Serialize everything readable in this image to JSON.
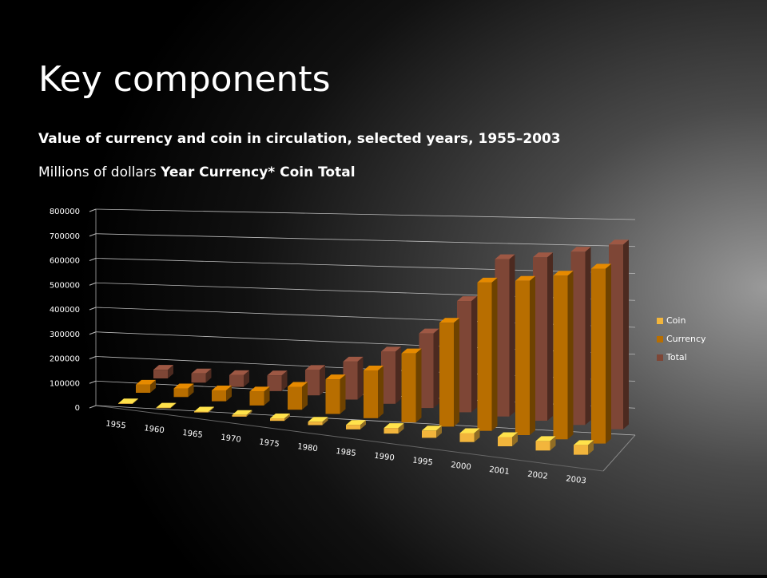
{
  "slide": {
    "title": "Key components",
    "subtitle": "Value of currency and coin in circulation,  selected years, 1955–2003",
    "note": "Millions of dollars",
    "header_row": "Year Currency*  Coin Total"
  },
  "chart_data": {
    "type": "bar3d",
    "categories": [
      "1955",
      "1960",
      "1965",
      "1970",
      "1975",
      "1980",
      "1985",
      "1990",
      "1995",
      "2000",
      "2001",
      "2002",
      "2003"
    ],
    "series": [
      {
        "name": "Coin",
        "color": "#f2b53c",
        "values": [
          2000,
          2000,
          3000,
          6000,
          9000,
          12000,
          16000,
          20000,
          26000,
          32000,
          33000,
          34000,
          35000
        ]
      },
      {
        "name": "Currency",
        "color": "#b86e00",
        "values": [
          29000,
          31000,
          39000,
          50000,
          82000,
          124000,
          171000,
          247000,
          372000,
          531000,
          552000,
          586000,
          626000
        ]
      },
      {
        "name": "Total",
        "color": "#7e4636",
        "values": [
          31000,
          33000,
          42000,
          56000,
          91000,
          136000,
          187000,
          267000,
          398000,
          563000,
          585000,
          620000,
          661000
        ]
      }
    ],
    "ylim": [
      0,
      800000
    ],
    "yticks": [
      0,
      100000,
      200000,
      300000,
      400000,
      500000,
      600000,
      700000,
      800000
    ],
    "grid": true,
    "legend": "right"
  }
}
